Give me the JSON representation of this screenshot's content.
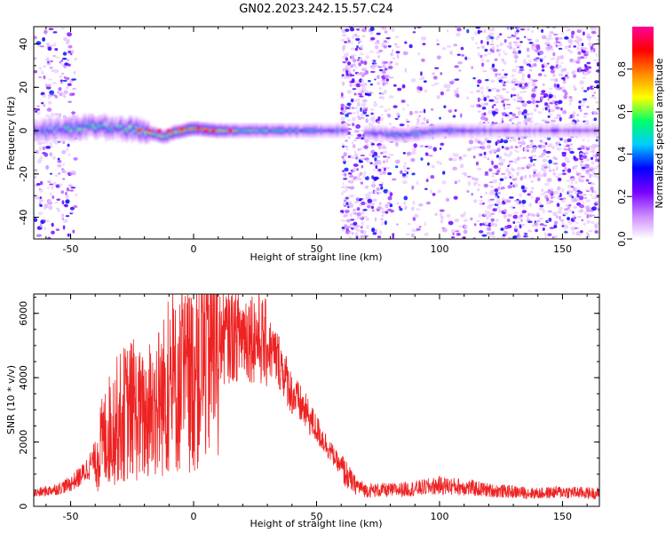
{
  "title": "GN02.2023.242.15.57.C24",
  "colors": {
    "snr_line": "#ee2222",
    "colormap": [
      "#ffffff",
      "#cc88ff",
      "#7700ff",
      "#0000ff",
      "#00ccff",
      "#00ff66",
      "#ffff00",
      "#ff8800",
      "#ff0000",
      "#ff0099"
    ]
  },
  "chart_data": [
    {
      "type": "heatmap",
      "title": "GN02.2023.242.15.57.C24",
      "xlabel": "Height of straight line (km)",
      "ylabel": "Frequency (Hz)",
      "xlim": [
        -65,
        165
      ],
      "ylim": [
        -50,
        48
      ],
      "xticks": [
        "-50",
        "0",
        "50",
        "100",
        "150"
      ],
      "yticks": [
        "-40",
        "-20",
        "0",
        "20",
        "40"
      ],
      "colorbar": {
        "label": "Normalized spectral amplitude",
        "range": [
          0.0,
          1.0
        ],
        "ticks": [
          "0.0",
          "0.2",
          "0.4",
          "0.6",
          "0.8"
        ]
      },
      "ridge": {
        "description_points_x": [
          -65,
          -50,
          -40,
          -30,
          -20,
          -12,
          -8,
          0,
          10,
          30,
          50,
          63,
          70,
          85,
          100,
          130,
          165
        ],
        "frequency_hz": [
          0,
          1,
          2,
          1,
          0,
          -3,
          -1,
          1,
          0,
          0,
          0,
          0,
          -1,
          -2,
          0,
          0,
          0
        ],
        "amplitude": [
          0.3,
          0.5,
          0.5,
          0.45,
          0.6,
          0.7,
          0.8,
          0.9,
          0.7,
          0.5,
          0.4,
          0.3,
          0.3,
          0.45,
          0.4,
          0.2,
          0.2
        ]
      }
    },
    {
      "type": "line",
      "xlabel": "Height of straight line (km)",
      "ylabel": "SNR (10 * v/v)",
      "xlim": [
        -65,
        165
      ],
      "ylim": [
        0,
        6600
      ],
      "xticks": [
        "-50",
        "0",
        "50",
        "100",
        "150"
      ],
      "yticks": [
        "0",
        "2000",
        "4000",
        "6000"
      ],
      "series": [
        {
          "x": [
            -65,
            -55,
            -50,
            -45,
            -40,
            -35,
            -30,
            -25,
            -20,
            -15,
            -10,
            -5,
            0,
            5,
            10,
            15,
            20,
            25,
            30,
            35,
            40,
            45,
            50,
            55,
            60,
            65,
            70,
            80,
            90,
            100,
            110,
            120,
            130,
            140,
            150,
            165
          ],
          "values": [
            400,
            550,
            700,
            1000,
            1500,
            2300,
            2800,
            3000,
            2700,
            3200,
            3600,
            3800,
            4000,
            4800,
            5200,
            5300,
            5400,
            5300,
            5000,
            4500,
            3500,
            3000,
            2400,
            1800,
            1200,
            700,
            500,
            500,
            550,
            650,
            600,
            500,
            450,
            400,
            450,
            400
          ]
        }
      ]
    }
  ]
}
